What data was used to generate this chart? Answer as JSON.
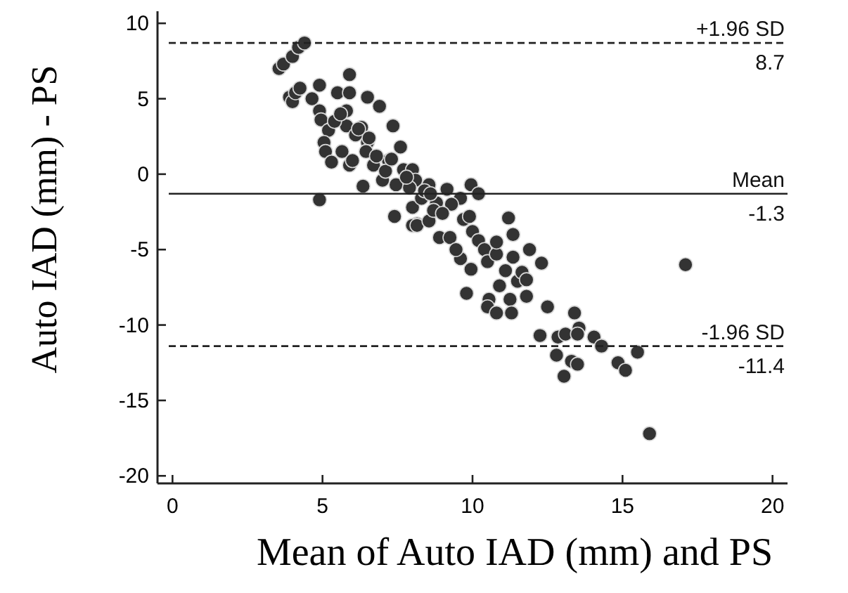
{
  "chart_data": {
    "type": "scatter",
    "xlabel": "Mean of Auto IAD (mm) and PS",
    "ylabel": "Auto IAD (mm) - PS",
    "marker": "circle",
    "grid": false,
    "xlim": [
      -0.5,
      20.5
    ],
    "ylim": [
      -20.5,
      10.8
    ],
    "xticks": [
      0,
      5,
      10,
      15,
      20
    ],
    "yticks": [
      -20,
      -15,
      -10,
      -5,
      0,
      5,
      10
    ],
    "series": [
      {
        "color": "#333333",
        "x": [
          3.55,
          3.7,
          4.0,
          4.2,
          4.4,
          3.9,
          4.0,
          4.1,
          4.25,
          4.9,
          4.65,
          4.9,
          4.95,
          5.2,
          5.05,
          5.1,
          5.3,
          4.9,
          5.5,
          5.65,
          5.9,
          5.9,
          5.8,
          5.8,
          5.9,
          6.0,
          6.3,
          6.35,
          6.5,
          6.9,
          6.5,
          6.55,
          6.45,
          6.7,
          7.0,
          7.35,
          7.2,
          7.4,
          7.6,
          7.7,
          7.45,
          8.0,
          8.1,
          8.0,
          8.15,
          8.3,
          8.55,
          8.8,
          8.9,
          9.15,
          9.25,
          9.6,
          9.7,
          9.6,
          9.95,
          10.0,
          9.95,
          10.2,
          8.0,
          8.15,
          8.55,
          9.45,
          9.8,
          9.9,
          10.2,
          10.4,
          10.5,
          10.55,
          10.5,
          10.8,
          10.8,
          10.8,
          10.9,
          11.1,
          11.2,
          11.25,
          11.3,
          11.35,
          11.35,
          11.5,
          11.65,
          11.8,
          11.8,
          11.9,
          12.3,
          12.5,
          12.25,
          12.85,
          12.8,
          13.1,
          13.05,
          13.4,
          13.55,
          13.5,
          13.3,
          13.5,
          14.05,
          14.3,
          14.85,
          15.1,
          15.5,
          17.1,
          15.9,
          5.4,
          6.1,
          6.8,
          7.1,
          7.9,
          8.4,
          8.7,
          9.3,
          5.6,
          6.2,
          7.3,
          7.8,
          8.6,
          9.0
        ],
        "values": [
          7.0,
          7.3,
          7.8,
          8.4,
          8.7,
          5.1,
          4.8,
          5.4,
          5.7,
          5.9,
          5.0,
          4.2,
          3.6,
          2.9,
          2.1,
          1.5,
          0.8,
          -1.7,
          5.4,
          1.5,
          6.6,
          5.4,
          4.2,
          3.2,
          0.6,
          0.9,
          3.1,
          -0.8,
          5.1,
          4.5,
          2.1,
          2.4,
          1.5,
          0.6,
          -0.4,
          3.2,
          0.9,
          -2.8,
          1.8,
          0.3,
          -0.7,
          0.3,
          -0.4,
          -2.2,
          -3.3,
          -1.6,
          -0.7,
          -1.9,
          -4.2,
          -1.0,
          -4.2,
          -1.6,
          -3.0,
          -5.6,
          -0.7,
          -3.8,
          -6.3,
          -1.3,
          -3.4,
          -3.4,
          -3.1,
          -5.0,
          -7.9,
          -2.8,
          -4.4,
          -5.0,
          -5.8,
          -8.3,
          -8.8,
          -9.2,
          -5.3,
          -4.5,
          -7.4,
          -6.4,
          -2.9,
          -8.3,
          -9.2,
          -5.5,
          -4.0,
          -7.1,
          -6.5,
          -7.0,
          -8.1,
          -5.0,
          -5.9,
          -8.8,
          -10.7,
          -10.8,
          -12.0,
          -10.6,
          -13.4,
          -9.2,
          -10.2,
          -10.6,
          -12.4,
          -12.6,
          -10.8,
          -11.4,
          -12.5,
          -13.0,
          -11.8,
          -6.0,
          -17.2,
          3.5,
          2.6,
          1.2,
          0.2,
          -0.9,
          -1.1,
          -2.4,
          -2.0,
          4.0,
          3.0,
          1.0,
          -0.2,
          -1.3,
          -2.6
        ]
      }
    ],
    "ref_lines": [
      {
        "axis": "y",
        "value": 8.7,
        "label": "+1.96 SD",
        "line_style": "dashed"
      },
      {
        "axis": "y",
        "value": -1.3,
        "label": "Mean",
        "line_style": "solid"
      },
      {
        "axis": "y",
        "value": -11.4,
        "label": "-1.96 SD",
        "line_style": "dashed"
      }
    ],
    "annotations": [
      {
        "text": "8.7",
        "y": 8.7
      },
      {
        "text": "-1.3",
        "y": -1.3
      },
      {
        "text": "-11.4",
        "y": -11.4
      }
    ]
  }
}
